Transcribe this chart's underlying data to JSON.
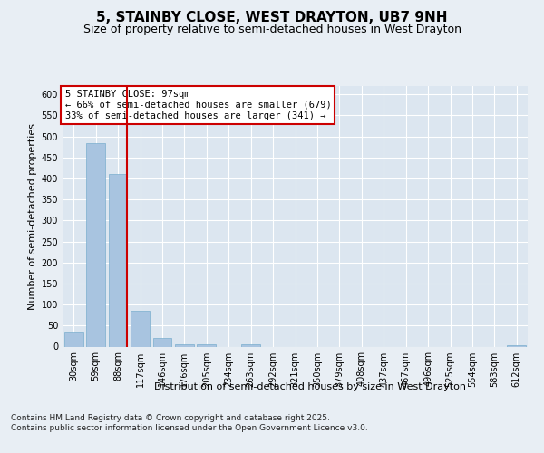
{
  "title": "5, STAINBY CLOSE, WEST DRAYTON, UB7 9NH",
  "subtitle": "Size of property relative to semi-detached houses in West Drayton",
  "xlabel": "Distribution of semi-detached houses by size in West Drayton",
  "ylabel": "Number of semi-detached properties",
  "categories": [
    "30sqm",
    "59sqm",
    "88sqm",
    "117sqm",
    "146sqm",
    "176sqm",
    "205sqm",
    "234sqm",
    "263sqm",
    "292sqm",
    "321sqm",
    "350sqm",
    "379sqm",
    "408sqm",
    "437sqm",
    "467sqm",
    "496sqm",
    "525sqm",
    "554sqm",
    "583sqm",
    "612sqm"
  ],
  "values": [
    35,
    485,
    410,
    85,
    20,
    5,
    6,
    0,
    5,
    0,
    0,
    0,
    0,
    0,
    0,
    0,
    0,
    0,
    0,
    0,
    4
  ],
  "bar_color": "#a8c4e0",
  "bar_edge_color": "#7aaece",
  "vline_x_index": 2,
  "vline_color": "#cc0000",
  "annotation_title": "5 STAINBY CLOSE: 97sqm",
  "annotation_line1": "← 66% of semi-detached houses are smaller (679)",
  "annotation_line2": "33% of semi-detached houses are larger (341) →",
  "annotation_box_color": "#ffffff",
  "annotation_box_edge": "#cc0000",
  "ylim": [
    0,
    620
  ],
  "yticks": [
    0,
    50,
    100,
    150,
    200,
    250,
    300,
    350,
    400,
    450,
    500,
    550,
    600
  ],
  "footnote": "Contains HM Land Registry data © Crown copyright and database right 2025.\nContains public sector information licensed under the Open Government Licence v3.0.",
  "background_color": "#e8eef4",
  "plot_bg_color": "#dce6f0",
  "grid_color": "#ffffff",
  "title_fontsize": 11,
  "subtitle_fontsize": 9,
  "ylabel_fontsize": 8,
  "xlabel_fontsize": 8,
  "tick_fontsize": 7,
  "annotation_fontsize": 7.5,
  "footnote_fontsize": 6.5
}
